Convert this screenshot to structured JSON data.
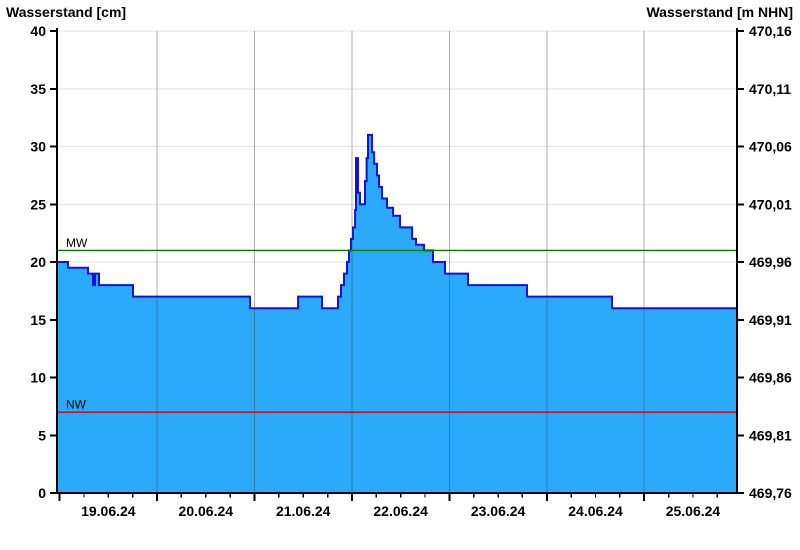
{
  "titles": {
    "left": "Wasserstand [cm]",
    "right": "Wasserstand [m NHN]"
  },
  "chart_data": {
    "type": "area",
    "title_left": "Wasserstand [cm]",
    "title_right": "Wasserstand [m NHN]",
    "x_unit": "days since 19.06.24 00:00",
    "x_range": [
      -0.027,
      6.952
    ],
    "x_day_labels": [
      "19.06.24",
      "20.06.24",
      "21.06.24",
      "22.06.24",
      "23.06.24",
      "24.06.24",
      "25.06.24"
    ],
    "x_minor_tick_days": 0.25,
    "y_left": {
      "unit": "cm",
      "min": 0,
      "max": 40,
      "tick_step": 5,
      "ticks": [
        0,
        5,
        10,
        15,
        20,
        25,
        30,
        35,
        40
      ]
    },
    "y_right": {
      "unit": "m NHN",
      "tick_labels": [
        "469,76",
        "469,81",
        "469,86",
        "469,91",
        "469,96",
        "470,01",
        "470,06",
        "470,11",
        "470,16"
      ]
    },
    "reference_lines": [
      {
        "name": "MW",
        "value_cm": 21,
        "color": "#007c00"
      },
      {
        "name": "NW",
        "value_cm": 7,
        "color": "#d40000"
      }
    ],
    "series": {
      "name": "Wasserstand",
      "mode": "step-after",
      "fill_color": "#2BA9FA",
      "line_color": "#1212D9",
      "points": [
        [
          -0.027,
          20
        ],
        [
          0.086,
          19.5
        ],
        [
          0.291,
          19
        ],
        [
          0.343,
          18
        ],
        [
          0.363,
          19
        ],
        [
          0.404,
          18
        ],
        [
          0.753,
          17
        ],
        [
          1.954,
          16
        ],
        [
          2.447,
          17
        ],
        [
          2.693,
          16
        ],
        [
          2.857,
          17
        ],
        [
          2.888,
          18
        ],
        [
          2.919,
          19
        ],
        [
          2.949,
          20
        ],
        [
          2.97,
          21
        ],
        [
          2.99,
          22
        ],
        [
          3.011,
          23
        ],
        [
          3.032,
          24.5
        ],
        [
          3.042,
          29
        ],
        [
          3.062,
          26
        ],
        [
          3.083,
          25
        ],
        [
          3.134,
          27
        ],
        [
          3.15,
          29
        ],
        [
          3.165,
          31
        ],
        [
          3.206,
          29.5
        ],
        [
          3.227,
          28.5
        ],
        [
          3.257,
          27.5
        ],
        [
          3.278,
          26.5
        ],
        [
          3.309,
          25.5
        ],
        [
          3.36,
          24.7
        ],
        [
          3.422,
          24
        ],
        [
          3.493,
          23
        ],
        [
          3.617,
          22
        ],
        [
          3.658,
          21.5
        ],
        [
          3.74,
          21
        ],
        [
          3.832,
          20
        ],
        [
          3.955,
          19
        ],
        [
          4.191,
          18
        ],
        [
          4.797,
          17
        ],
        [
          5.669,
          16
        ],
        [
          6.952,
          16
        ]
      ]
    },
    "grid": {
      "h_color": "#e2e2e2",
      "v_color": "rgba(70,70,70,0.42)"
    },
    "axis_color": "#000000"
  }
}
